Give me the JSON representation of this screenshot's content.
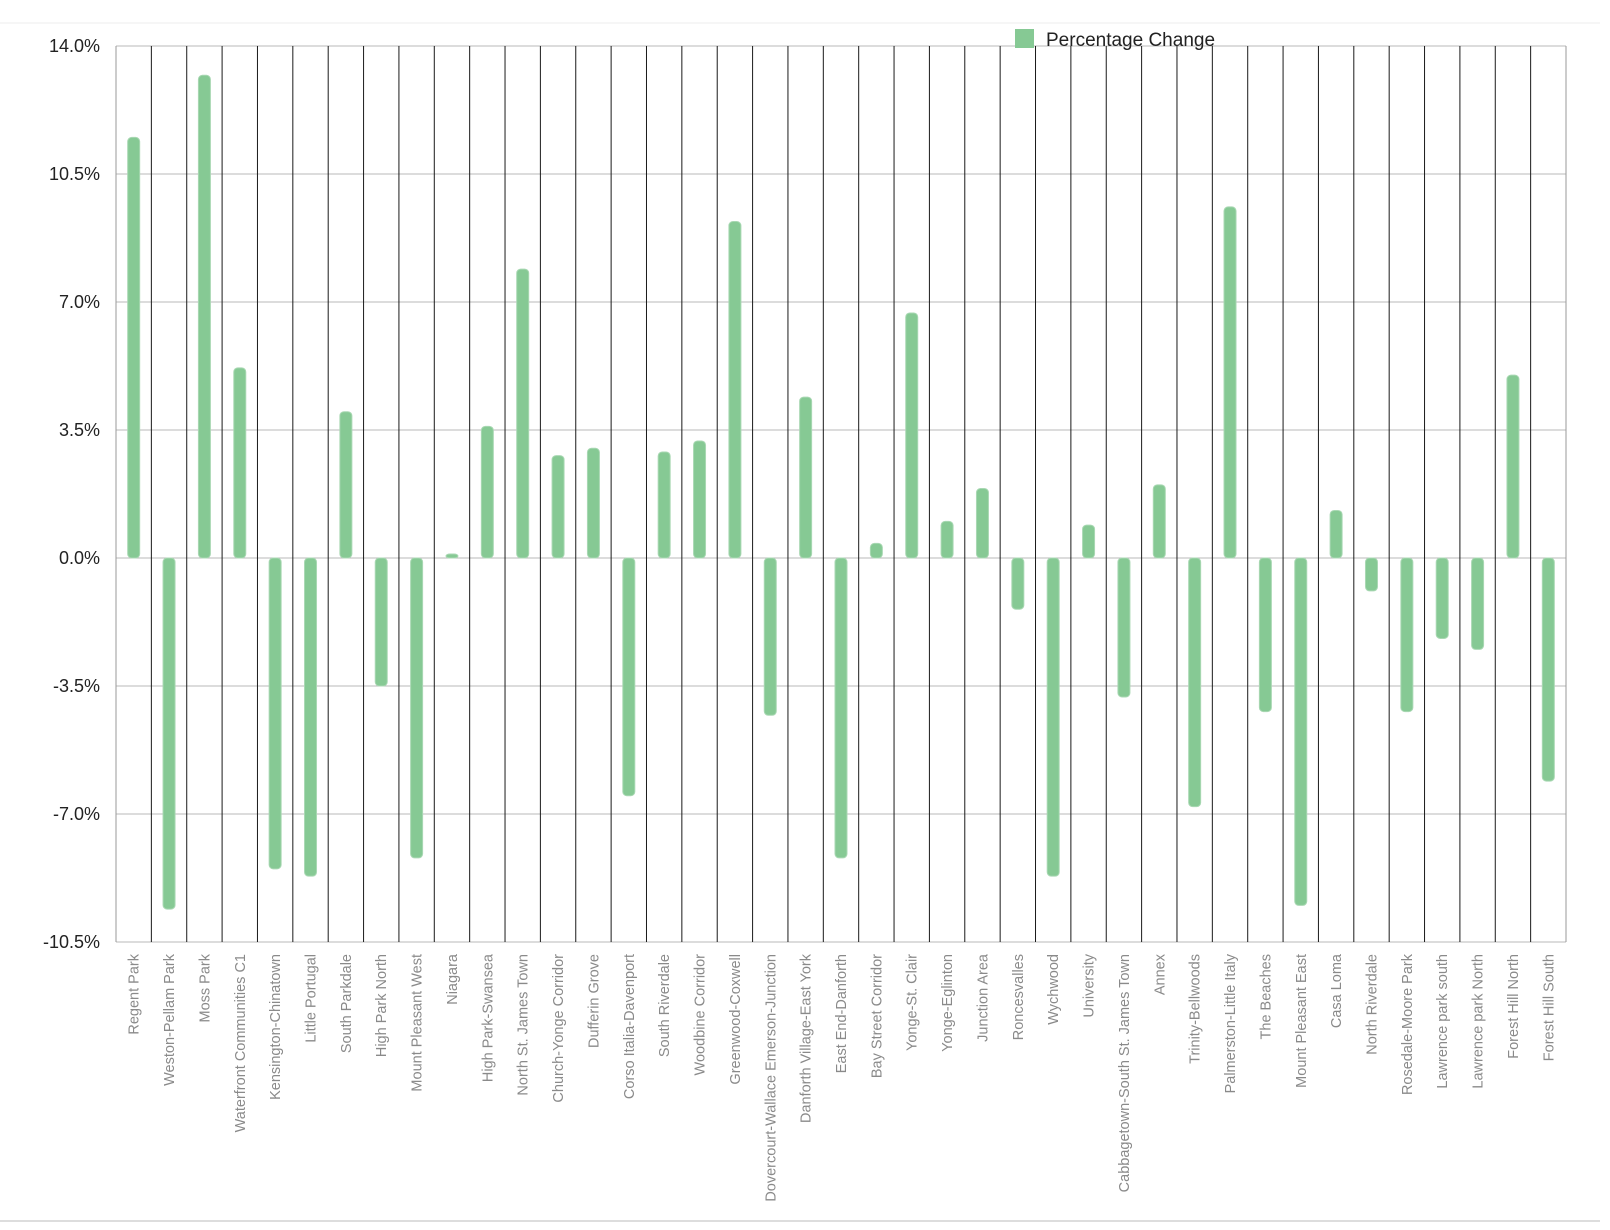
{
  "chart_data": {
    "type": "bar",
    "legend": {
      "position": "top-center"
    },
    "grid": true,
    "ylim": [
      -10.5,
      14.0
    ],
    "yticks": [
      14.0,
      10.5,
      7.0,
      3.5,
      0.0,
      -3.5,
      -7.0,
      -10.5
    ],
    "ytick_labels": [
      "14.0%",
      "10.5%",
      "7.0%",
      "3.5%",
      "0.0%",
      "-3.5%",
      "-7.0%",
      "-10.5%"
    ],
    "categories": [
      "Regent Park",
      "Weston-Pellam Park",
      "Moss Park",
      "Waterfront Communities C1",
      "Kensington-Chinatown",
      "Little Portugal",
      "South Parkdale",
      "High Park North",
      "Mount Pleasant West",
      "Niagara",
      "High Park-Swansea",
      "North St. James Town",
      "Church-Yonge Corridor",
      "Dufferin Grove",
      "Corso Italia-Davenport",
      "South Riverdale",
      "Woodbine Corridor",
      "Greenwood-Coxwell",
      "Dovercourt-Wallace Emerson-Junction",
      "Danforth Village-East York",
      "East End-Danforth",
      "Bay Street Corridor",
      "Yonge-St. Clair",
      "Yonge-Eglinton",
      "Junction Area",
      "Roncesvalles",
      "Wychwood",
      "University",
      "Cabbagetown-South St. James Town",
      "Annex",
      "Trinity-Bellwoods",
      "Palmerston-Little Italy",
      "The Beaches",
      "Mount Pleasant East",
      "Casa Loma",
      "North Riverdale",
      "Rosedale-Moore Park",
      "Lawrence park south",
      "Lawrence park North",
      "Forest Hill North",
      "Forest Hill South"
    ],
    "series": [
      {
        "name": "Percentage Change",
        "color": "#86c994",
        "values": [
          11.5,
          -9.6,
          13.2,
          5.2,
          -8.5,
          -8.7,
          4.0,
          -3.5,
          -8.2,
          0.1,
          3.6,
          7.9,
          2.8,
          3.0,
          -6.5,
          2.9,
          3.2,
          9.2,
          -4.3,
          4.4,
          -8.2,
          0.4,
          6.7,
          1.0,
          1.9,
          -1.4,
          -8.7,
          0.9,
          -3.8,
          2.0,
          -6.8,
          9.6,
          -4.2,
          -9.5,
          1.3,
          -0.9,
          -4.2,
          -2.2,
          -2.5,
          5.0,
          -6.1
        ]
      }
    ]
  }
}
